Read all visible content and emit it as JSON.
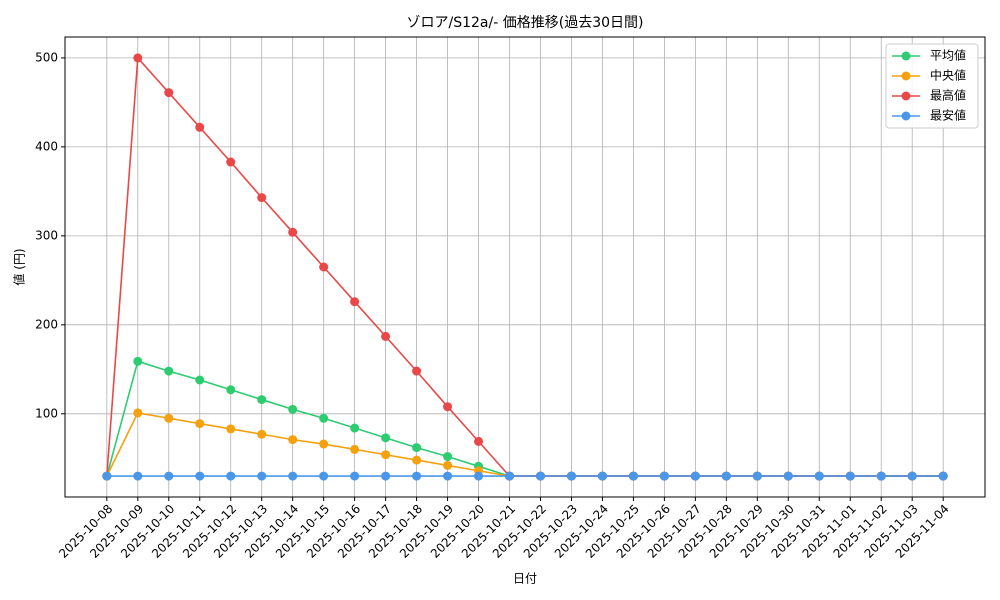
{
  "chart_data": {
    "type": "line",
    "title": "ゾロア/S12a/- 価格推移(過去30日間)",
    "x_label": "日付",
    "y_label": "値 (円)",
    "categories": [
      "2025-10-08",
      "2025-10-09",
      "2025-10-10",
      "2025-10-11",
      "2025-10-12",
      "2025-10-13",
      "2025-10-14",
      "2025-10-15",
      "2025-10-16",
      "2025-10-17",
      "2025-10-18",
      "2025-10-19",
      "2025-10-20",
      "2025-10-21",
      "2025-10-22",
      "2025-10-23",
      "2025-10-24",
      "2025-10-25",
      "2025-10-26",
      "2025-10-27",
      "2025-10-28",
      "2025-10-29",
      "2025-10-30",
      "2025-10-31",
      "2025-11-01",
      "2025-11-02",
      "2025-11-03",
      "2025-11-04"
    ],
    "series": [
      {
        "name": "平均値",
        "color": "#2ecc71",
        "values": [
          30,
          159,
          148,
          138,
          127,
          116,
          105,
          95,
          84,
          73,
          62,
          52,
          41,
          30,
          30,
          30,
          30,
          30,
          30,
          30,
          30,
          30,
          30,
          30,
          30,
          30,
          30,
          30
        ]
      },
      {
        "name": "中央値",
        "color": "#f5a10f",
        "values": [
          30,
          101,
          95,
          89,
          83,
          77,
          71,
          66,
          60,
          54,
          48,
          42,
          36,
          30,
          30,
          30,
          30,
          30,
          30,
          30,
          30,
          30,
          30,
          30,
          30,
          30,
          30,
          30
        ]
      },
      {
        "name": "最高値",
        "color": "#ea4848",
        "values": [
          30,
          500,
          461,
          422,
          383,
          343,
          304,
          265,
          226,
          187,
          148,
          108,
          69,
          30,
          30,
          30,
          30,
          30,
          30,
          30,
          30,
          30,
          30,
          30,
          30,
          30,
          30,
          30
        ]
      },
      {
        "name": "最安値",
        "color": "#4a97ea",
        "values": [
          30,
          30,
          30,
          30,
          30,
          30,
          30,
          30,
          30,
          30,
          30,
          30,
          30,
          30,
          30,
          30,
          30,
          30,
          30,
          30,
          30,
          30,
          30,
          30,
          30,
          30,
          30,
          30
        ]
      }
    ],
    "ylim": [
      6.5,
      523.5
    ],
    "yticks": [
      100,
      200,
      300,
      400,
      500
    ],
    "grid": true,
    "legend": "upper-right"
  }
}
